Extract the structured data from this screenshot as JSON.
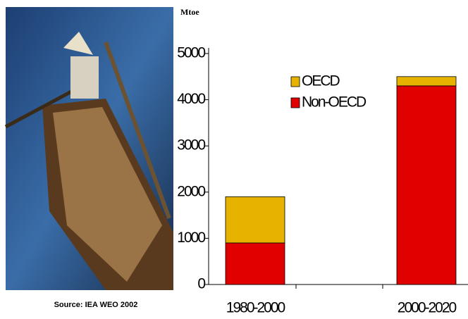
{
  "source": "Source: IEA WEO 2002",
  "chart_data": {
    "type": "stacked_bar",
    "y_label": "Mtoe",
    "categories": [
      "1980-2000",
      "2000-2020"
    ],
    "series": [
      {
        "name": "Non-OECD",
        "color": "#e00000",
        "values": [
          900,
          4300
        ]
      },
      {
        "name": "OECD",
        "color": "#e6b400",
        "values": [
          1000,
          200
        ]
      }
    ],
    "ylim": [
      0,
      5000
    ],
    "yticks": [
      0,
      1000,
      2000,
      3000,
      4000,
      5000
    ]
  }
}
